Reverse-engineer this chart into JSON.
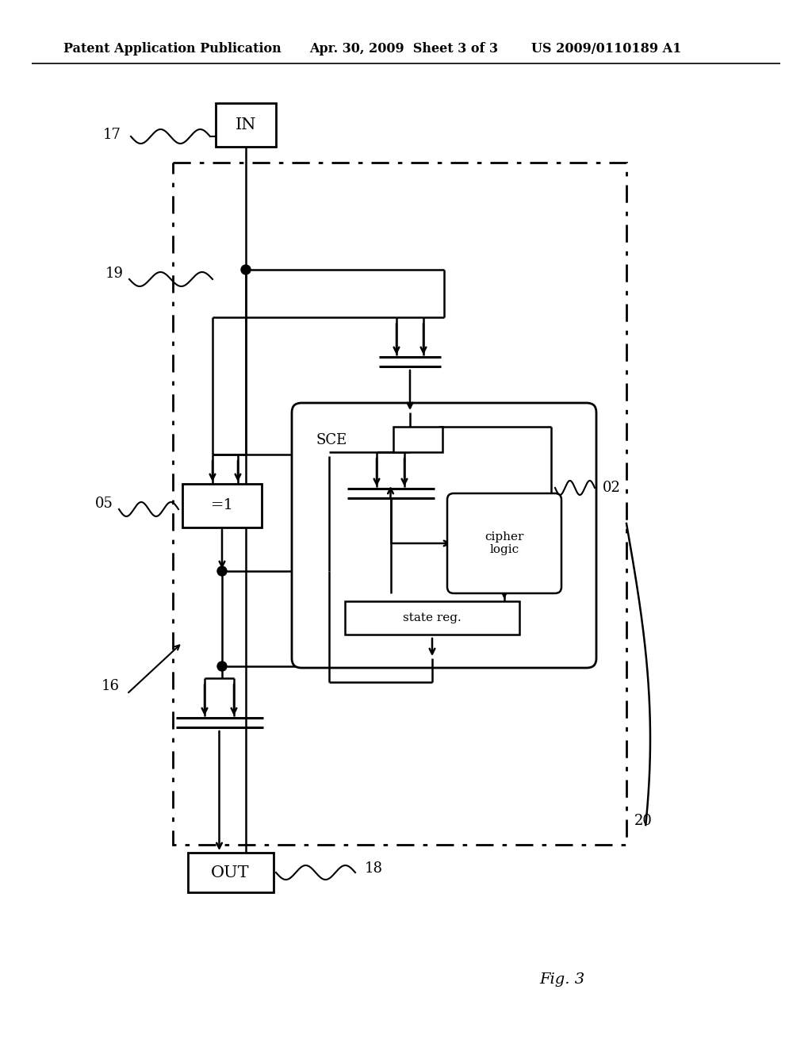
{
  "bg_color": "#ffffff",
  "header_text1": "Patent Application Publication",
  "header_text2": "Apr. 30, 2009  Sheet 3 of 3",
  "header_text3": "US 2009/0110189 A1",
  "footer_text": "Fig. 3"
}
